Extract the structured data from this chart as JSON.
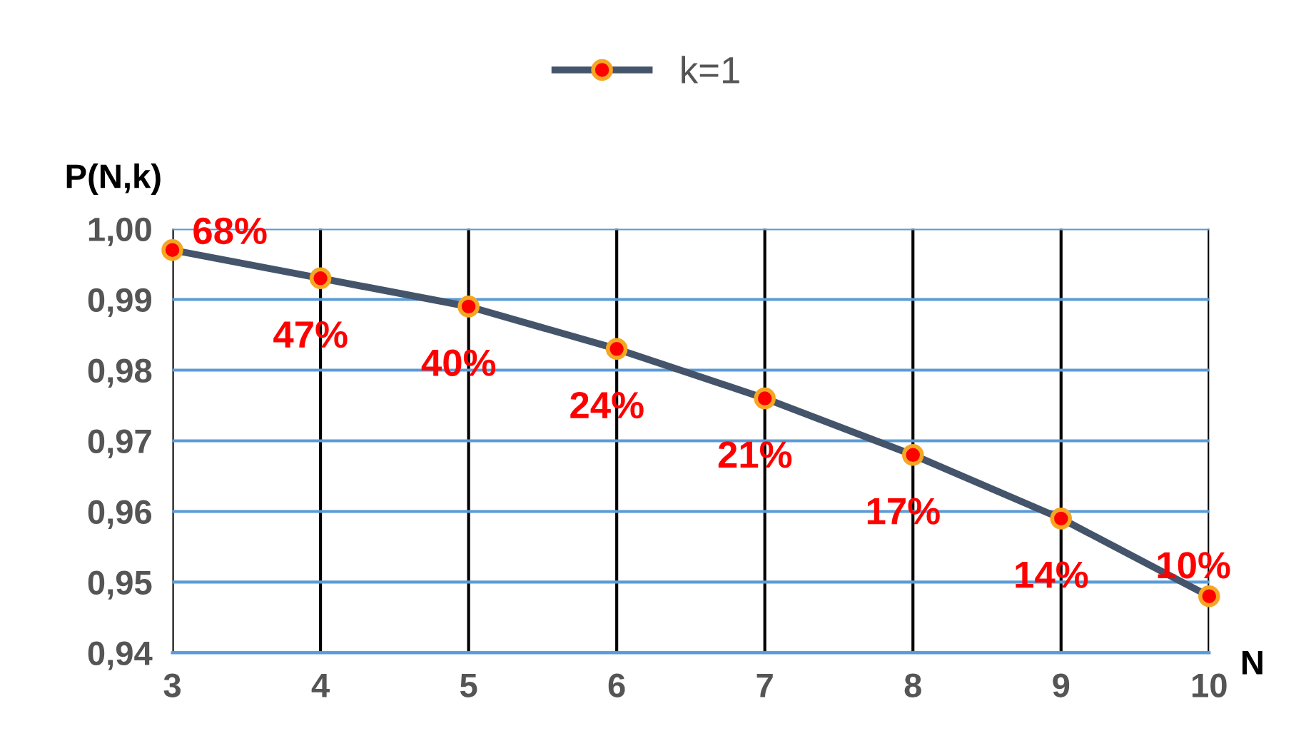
{
  "chart_data": {
    "type": "line",
    "xlabel": "N",
    "ylabel": "P(N,k)",
    "x": [
      3,
      4,
      5,
      6,
      7,
      8,
      9,
      10
    ],
    "series": [
      {
        "name": "k=1",
        "color": "#44546a",
        "values": [
          0.997,
          0.993,
          0.989,
          0.983,
          0.976,
          0.968,
          0.959,
          0.948
        ]
      }
    ],
    "xlim": [
      3,
      10
    ],
    "xticks": [
      3,
      4,
      5,
      6,
      7,
      8,
      9,
      10
    ],
    "ylim": [
      0.94,
      1.0
    ],
    "yticks": [
      {
        "value": 0.94,
        "label": "0,94"
      },
      {
        "value": 0.95,
        "label": "0,95"
      },
      {
        "value": 0.96,
        "label": "0,96"
      },
      {
        "value": 0.97,
        "label": "0,97"
      },
      {
        "value": 0.98,
        "label": "0,98"
      },
      {
        "value": 0.99,
        "label": "0,99"
      },
      {
        "value": 1.0,
        "label": "1,00"
      }
    ],
    "grid": true,
    "legend": "top",
    "marker": "circle",
    "line_style": "solid",
    "annotations": [
      {
        "text": "68%",
        "x": 3,
        "y": 0.997
      },
      {
        "text": "47%",
        "x": 4,
        "y": 0.993
      },
      {
        "text": "40%",
        "x": 5,
        "y": 0.989
      },
      {
        "text": "24%",
        "x": 6,
        "y": 0.983
      },
      {
        "text": "21%",
        "x": 7,
        "y": 0.976
      },
      {
        "text": "17%",
        "x": 8,
        "y": 0.968
      },
      {
        "text": "14%",
        "x": 9,
        "y": 0.959
      },
      {
        "text": "10%",
        "x": 10,
        "y": 0.948
      }
    ]
  }
}
